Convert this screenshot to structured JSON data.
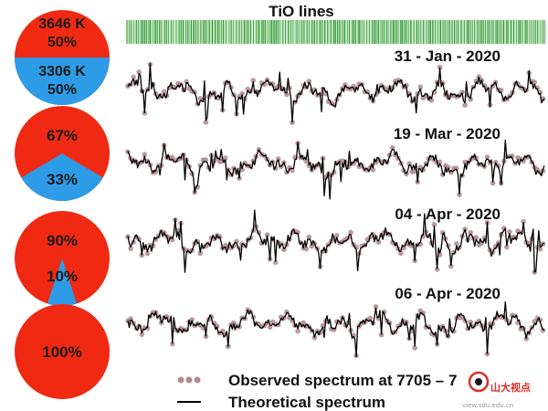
{
  "figure": {
    "title": "TiO lines",
    "legend": {
      "observed_label": "Observed spectrum at 7705 – 7",
      "theoretical_label": "Theoretical spectrum"
    },
    "watermark": {
      "text": "山大视点",
      "subtext": "view.sdu.edu.cn"
    }
  },
  "colors": {
    "hot": "#f02a12",
    "cool": "#2e9be6",
    "observed": "#b08a8f",
    "model": "#000000",
    "tio_lines": "#2f9a2f",
    "watermark": "#d9322b"
  },
  "chart_data": [
    {
      "type": "pie",
      "panel": "31 - Jan - 2020",
      "slices": [
        {
          "label": "3646 K",
          "percent_label": "50%",
          "value": 50,
          "color": "#f02a12"
        },
        {
          "label": "3306 K",
          "percent_label": "50%",
          "value": 50,
          "color": "#2e9be6"
        }
      ]
    },
    {
      "type": "pie",
      "panel": "19 - Mar - 2020",
      "slices": [
        {
          "label": "",
          "percent_label": "67%",
          "value": 67,
          "color": "#f02a12"
        },
        {
          "label": "",
          "percent_label": "33%",
          "value": 33,
          "color": "#2e9be6"
        }
      ]
    },
    {
      "type": "pie",
      "panel": "04 - Apr - 2020",
      "slices": [
        {
          "label": "",
          "percent_label": "90%",
          "value": 90,
          "color": "#f02a12"
        },
        {
          "label": "",
          "percent_label": "10%",
          "value": 10,
          "color": "#2e9be6"
        }
      ]
    },
    {
      "type": "pie",
      "panel": "06 - Apr - 2020",
      "slices": [
        {
          "label": "",
          "percent_label": "100%",
          "value": 100,
          "color": "#f02a12"
        }
      ]
    },
    {
      "type": "line",
      "title": "TiO lines",
      "panels": [
        {
          "date": "31 - Jan - 2020",
          "hot_fraction": 0.5
        },
        {
          "date": "19 - Mar - 2020",
          "hot_fraction": 0.67
        },
        {
          "date": "04 - Apr - 2020",
          "hot_fraction": 0.9
        },
        {
          "date": "06 - Apr - 2020",
          "hot_fraction": 1.0
        }
      ],
      "series": [
        {
          "name": "Observed spectrum at 7705 – 7",
          "style": "dots",
          "color": "#b08a8f"
        },
        {
          "name": "Theoretical spectrum",
          "style": "line",
          "color": "#000000"
        }
      ],
      "axes": "none",
      "grid": false,
      "legend_position": "bottom"
    }
  ]
}
